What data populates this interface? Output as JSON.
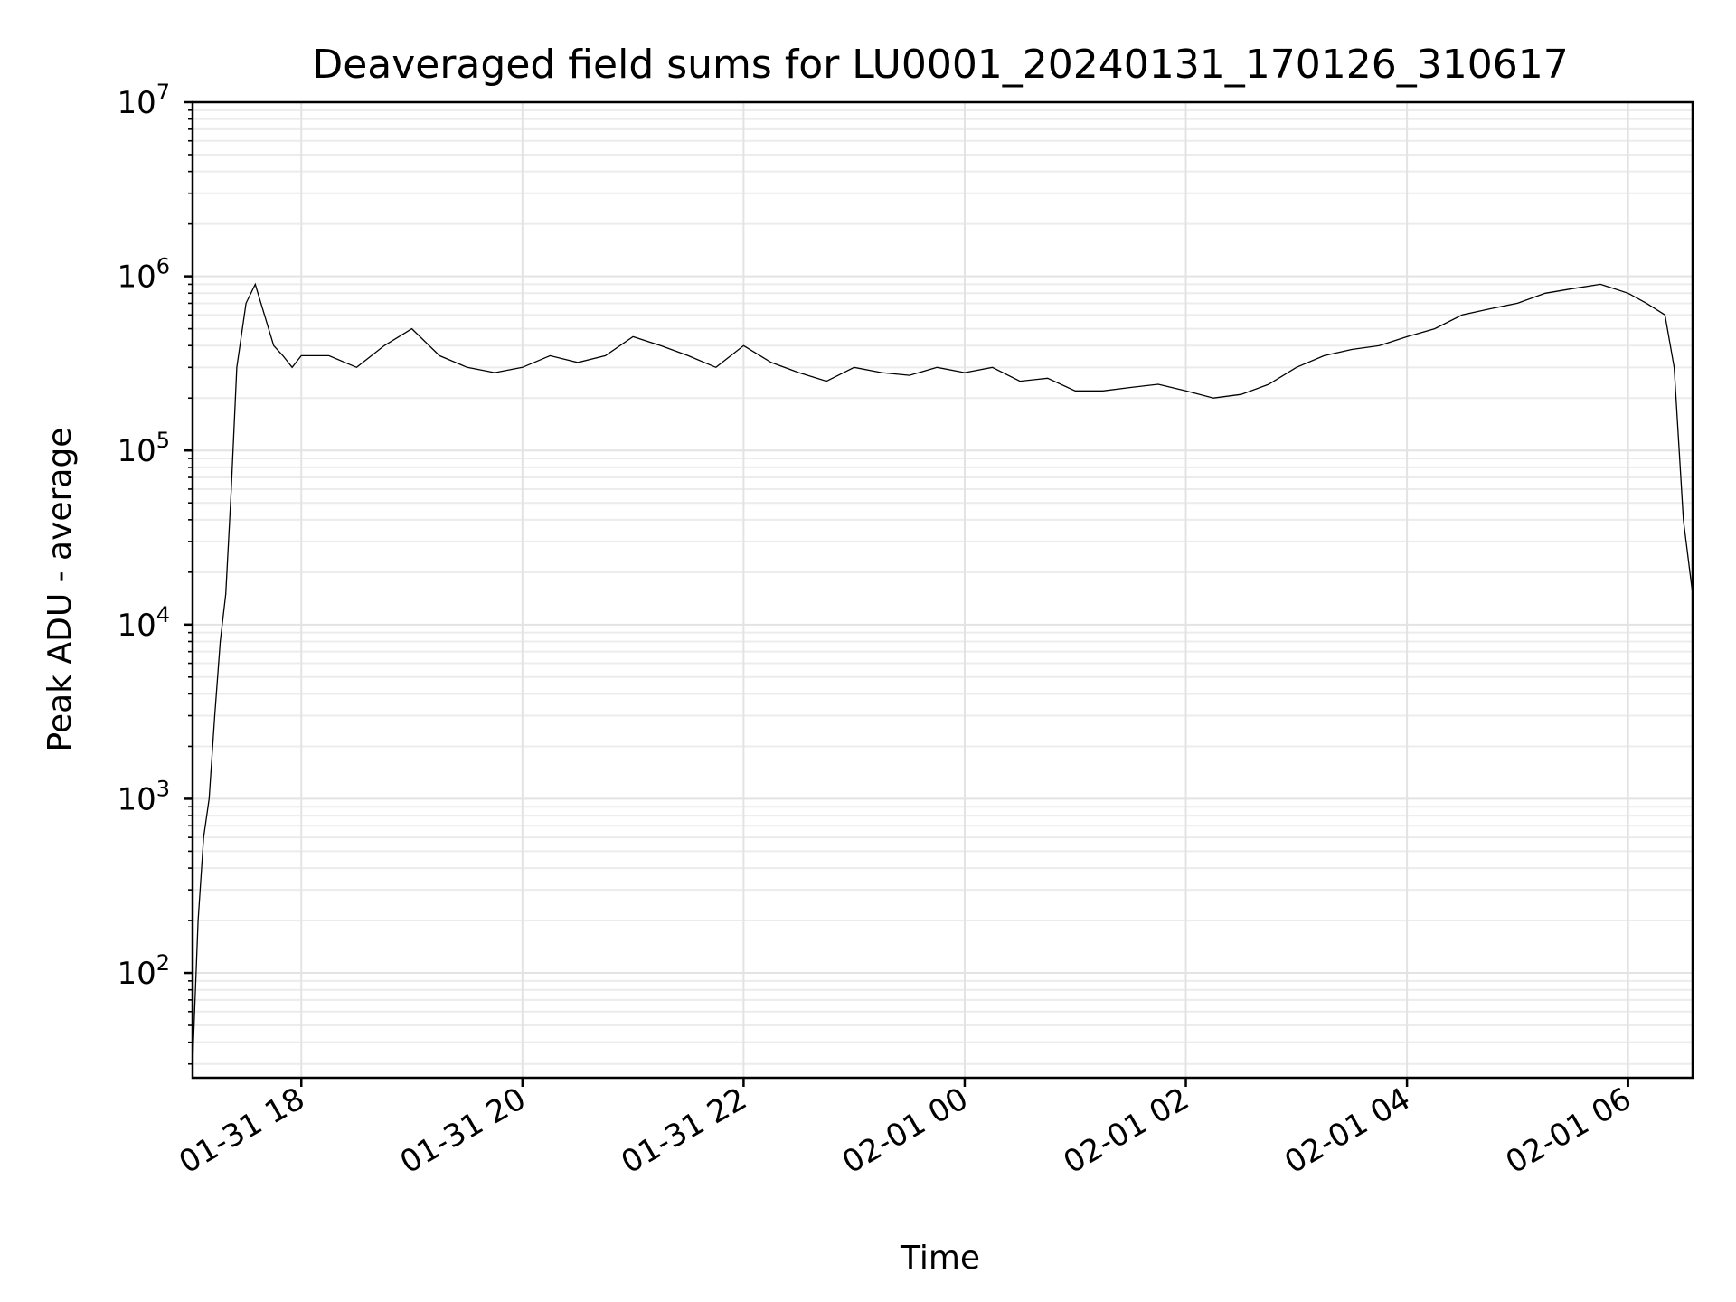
{
  "chart_data": {
    "type": "line",
    "title": "Deaveraged field sums for LU0001_20240131_170126_310617",
    "xlabel": "Time",
    "ylabel": "Peak ADU - average",
    "yscale": "log",
    "ylim": [
      25,
      10000000
    ],
    "xlim": [
      "2024-01-31 17:01",
      "2024-02-01 06:35"
    ],
    "grid": true,
    "x_ticks": [
      {
        "value": "2024-01-31 18:00",
        "label": "01-31 18"
      },
      {
        "value": "2024-01-31 20:00",
        "label": "01-31 20"
      },
      {
        "value": "2024-01-31 22:00",
        "label": "01-31 22"
      },
      {
        "value": "2024-02-01 00:00",
        "label": "02-01 00"
      },
      {
        "value": "2024-02-01 02:00",
        "label": "02-01 02"
      },
      {
        "value": "2024-02-01 04:00",
        "label": "02-01 04"
      },
      {
        "value": "2024-02-01 06:00",
        "label": "02-01 06"
      }
    ],
    "y_ticks": [
      {
        "value": 100,
        "base": "10",
        "exp": "2"
      },
      {
        "value": 1000,
        "base": "10",
        "exp": "3"
      },
      {
        "value": 10000,
        "base": "10",
        "exp": "4"
      },
      {
        "value": 100000,
        "base": "10",
        "exp": "5"
      },
      {
        "value": 1000000,
        "base": "10",
        "exp": "6"
      },
      {
        "value": 10000000,
        "base": "10",
        "exp": "7"
      }
    ],
    "series": [
      {
        "color": "#000000",
        "x": [
          "2024-01-31 17:01",
          "2024-01-31 17:04",
          "2024-01-31 17:07",
          "2024-01-31 17:10",
          "2024-01-31 17:13",
          "2024-01-31 17:16",
          "2024-01-31 17:19",
          "2024-01-31 17:22",
          "2024-01-31 17:25",
          "2024-01-31 17:30",
          "2024-01-31 17:35",
          "2024-01-31 17:40",
          "2024-01-31 17:45",
          "2024-01-31 17:50",
          "2024-01-31 17:55",
          "2024-01-31 18:00",
          "2024-01-31 18:15",
          "2024-01-31 18:30",
          "2024-01-31 18:45",
          "2024-01-31 19:00",
          "2024-01-31 19:15",
          "2024-01-31 19:30",
          "2024-01-31 19:45",
          "2024-01-31 20:00",
          "2024-01-31 20:15",
          "2024-01-31 20:30",
          "2024-01-31 20:45",
          "2024-01-31 21:00",
          "2024-01-31 21:15",
          "2024-01-31 21:30",
          "2024-01-31 21:45",
          "2024-01-31 22:00",
          "2024-01-31 22:15",
          "2024-01-31 22:30",
          "2024-01-31 22:45",
          "2024-01-31 23:00",
          "2024-01-31 23:15",
          "2024-01-31 23:30",
          "2024-01-31 23:45",
          "2024-02-01 00:00",
          "2024-02-01 00:15",
          "2024-02-01 00:30",
          "2024-02-01 00:45",
          "2024-02-01 01:00",
          "2024-02-01 01:15",
          "2024-02-01 01:30",
          "2024-02-01 01:45",
          "2024-02-01 02:00",
          "2024-02-01 02:15",
          "2024-02-01 02:30",
          "2024-02-01 02:45",
          "2024-02-01 03:00",
          "2024-02-01 03:15",
          "2024-02-01 03:30",
          "2024-02-01 03:45",
          "2024-02-01 04:00",
          "2024-02-01 04:15",
          "2024-02-01 04:30",
          "2024-02-01 04:45",
          "2024-02-01 05:00",
          "2024-02-01 05:15",
          "2024-02-01 05:30",
          "2024-02-01 05:45",
          "2024-02-01 06:00",
          "2024-02-01 06:10",
          "2024-02-01 06:20",
          "2024-02-01 06:25",
          "2024-02-01 06:30",
          "2024-02-01 06:35"
        ],
        "values": [
          30,
          200,
          600,
          1000,
          3000,
          8000,
          15000,
          60000,
          300000,
          700000,
          900000,
          600000,
          400000,
          350000,
          300000,
          350000,
          350000,
          300000,
          400000,
          500000,
          350000,
          300000,
          280000,
          300000,
          350000,
          320000,
          350000,
          450000,
          400000,
          350000,
          300000,
          400000,
          320000,
          280000,
          250000,
          300000,
          280000,
          270000,
          300000,
          280000,
          300000,
          250000,
          260000,
          220000,
          220000,
          230000,
          240000,
          220000,
          200000,
          210000,
          240000,
          300000,
          350000,
          380000,
          400000,
          450000,
          500000,
          600000,
          650000,
          700000,
          800000,
          850000,
          900000,
          800000,
          700000,
          600000,
          300000,
          40000,
          15000
        ]
      }
    ]
  }
}
